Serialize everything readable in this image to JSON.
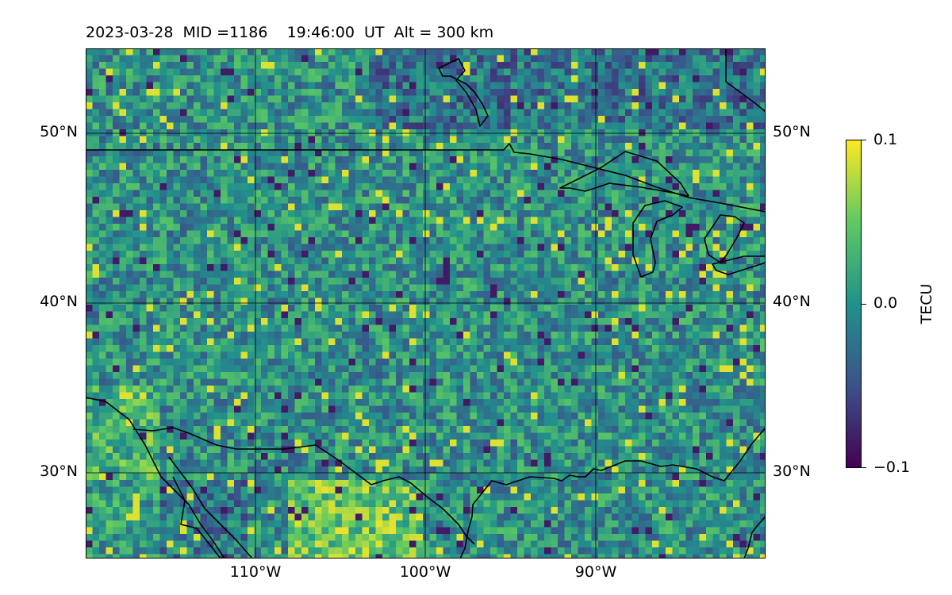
{
  "title": "2023-03-28  MID =1186    19:46:00  UT  Alt = 300 km",
  "map": {
    "lat_ticks": [
      {
        "label": "50°N"
      },
      {
        "label": "40°N"
      },
      {
        "label": "30°N"
      }
    ],
    "lon_ticks": [
      {
        "label": "110°W"
      },
      {
        "label": "100°W"
      },
      {
        "label": "90°W"
      }
    ],
    "colormap": "viridis",
    "line_color": "#000000"
  },
  "colorbar": {
    "label": "TECU",
    "max_label": "0.1",
    "mid_label": "0.0",
    "min_label": "−0.1",
    "vmin": -0.1,
    "vmax": 0.1,
    "colors": [
      "#440154",
      "#3b528b",
      "#21918c",
      "#5ec962",
      "#fde725"
    ]
  }
}
